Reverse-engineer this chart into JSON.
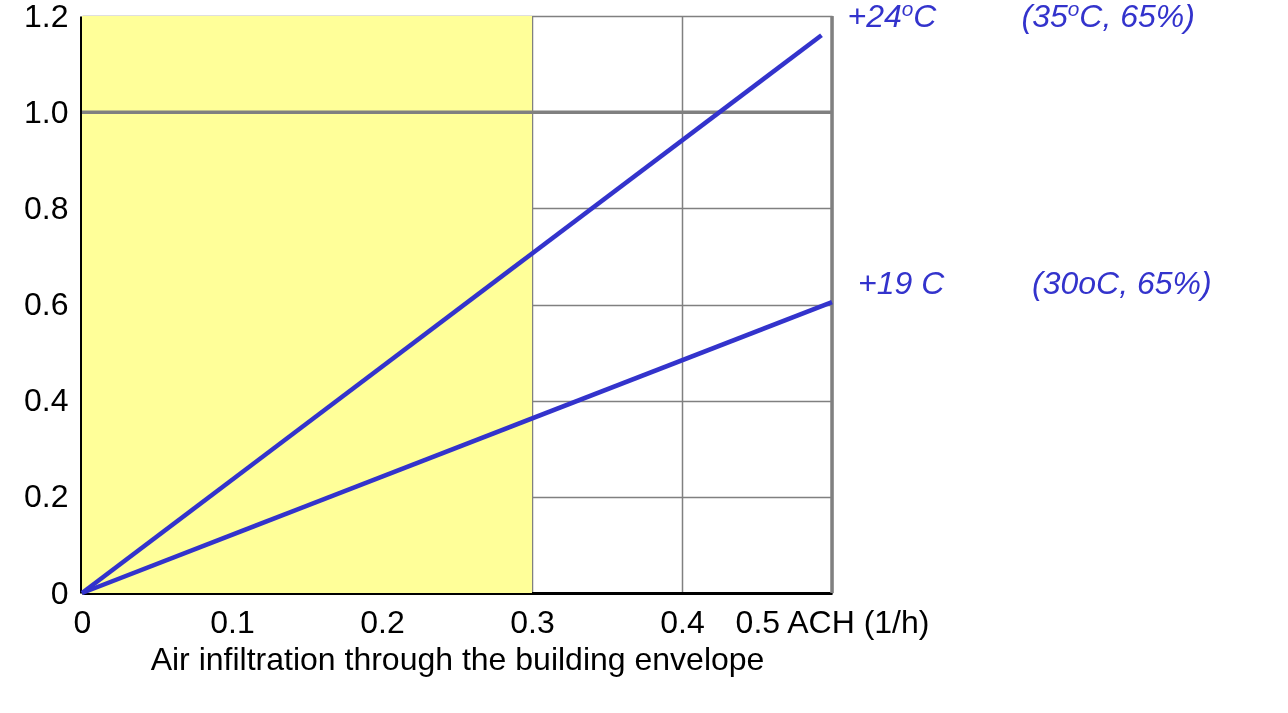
{
  "chart_data": {
    "type": "line",
    "xlabel": "Air infiltration through the building envelope",
    "xlim": [
      0,
      0.5
    ],
    "ylim": [
      0,
      1.2
    ],
    "xticks": [
      0,
      0.1,
      0.2,
      0.3,
      0.4,
      {
        "value": 0.5,
        "label": "0.5 ACH (1/h)"
      }
    ],
    "yticks": [
      0,
      0.2,
      0.4,
      0.6,
      0.8,
      {
        "value": 1,
        "label": "1.0"
      },
      1.2
    ],
    "series": [
      {
        "name": "+24$^{o}$C",
        "color": "#3333cc",
        "x": [
          0,
          0.493
        ],
        "values": [
          0,
          1.16
        ]
      },
      {
        "name": "+19 C",
        "color": "#3333cc",
        "x": [
          0,
          0.5
        ],
        "values": [
          0,
          0.605
        ]
      }
    ],
    "annotations": [
      "(35$^{o}$C, 65%)",
      "(30oC, 65%)"
    ],
    "bands": [
      {
        "axis": "x",
        "from": 0,
        "to": 0.3,
        "color": "#ffff99"
      }
    ],
    "ref_lines": [
      {
        "axis": "y",
        "value": 1,
        "color": "#808080"
      },
      {
        "axis": "x",
        "value": 0.5,
        "color": "#808080"
      }
    ],
    "grid": true,
    "legend": false,
    "marker": "none",
    "line_style": "solid"
  }
}
